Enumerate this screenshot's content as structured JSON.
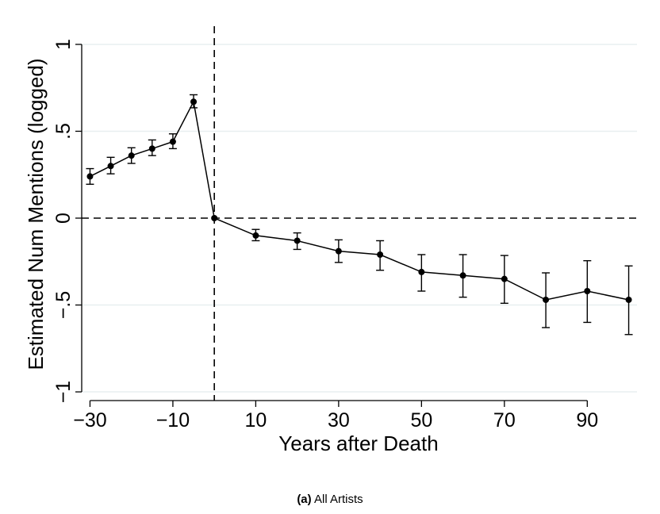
{
  "caption": {
    "tag": "(a)",
    "text": "All Artists"
  },
  "chart_data": {
    "type": "line",
    "title": "",
    "xlabel": "Years after Death",
    "ylabel": "Estimated Num Mentions (logged)",
    "xlim": [
      -32,
      102
    ],
    "ylim": [
      -1.05,
      1.05
    ],
    "x_ticks": [
      -30,
      -10,
      10,
      30,
      50,
      70,
      90
    ],
    "x_tick_labels": [
      "−30",
      "−10",
      "10",
      "30",
      "50",
      "70",
      "90"
    ],
    "y_ticks": [
      1,
      0.5,
      0,
      -0.5,
      -1
    ],
    "y_tick_labels": [
      "1",
      ".5",
      "0",
      "−.5",
      "−1"
    ],
    "grid": "horizontal at y ticks",
    "reference_lines": {
      "vertical_x": 0,
      "horizontal_y": 0,
      "style": "dashed"
    },
    "series": [
      {
        "points": [
          {
            "x": -30,
            "y": 0.24,
            "lo": 0.195,
            "hi": 0.285
          },
          {
            "x": -25,
            "y": 0.3,
            "lo": 0.255,
            "hi": 0.35
          },
          {
            "x": -20,
            "y": 0.36,
            "lo": 0.315,
            "hi": 0.405
          },
          {
            "x": -15,
            "y": 0.4,
            "lo": 0.36,
            "hi": 0.45
          },
          {
            "x": -10,
            "y": 0.44,
            "lo": 0.4,
            "hi": 0.485
          },
          {
            "x": -5,
            "y": 0.67,
            "lo": 0.635,
            "hi": 0.71
          },
          {
            "x": 0,
            "y": 0.0,
            "lo": 0.0,
            "hi": 0.0
          },
          {
            "x": 10,
            "y": -0.1,
            "lo": -0.13,
            "hi": -0.065
          },
          {
            "x": 20,
            "y": -0.13,
            "lo": -0.18,
            "hi": -0.085
          },
          {
            "x": 30,
            "y": -0.19,
            "lo": -0.255,
            "hi": -0.125
          },
          {
            "x": 40,
            "y": -0.21,
            "lo": -0.3,
            "hi": -0.13
          },
          {
            "x": 50,
            "y": -0.31,
            "lo": -0.42,
            "hi": -0.21
          },
          {
            "x": 60,
            "y": -0.33,
            "lo": -0.455,
            "hi": -0.21
          },
          {
            "x": 70,
            "y": -0.35,
            "lo": -0.49,
            "hi": -0.215
          },
          {
            "x": 80,
            "y": -0.47,
            "lo": -0.63,
            "hi": -0.315
          },
          {
            "x": 90,
            "y": -0.42,
            "lo": -0.6,
            "hi": -0.245
          },
          {
            "x": 100,
            "y": -0.47,
            "lo": -0.67,
            "hi": -0.275
          }
        ]
      }
    ]
  }
}
